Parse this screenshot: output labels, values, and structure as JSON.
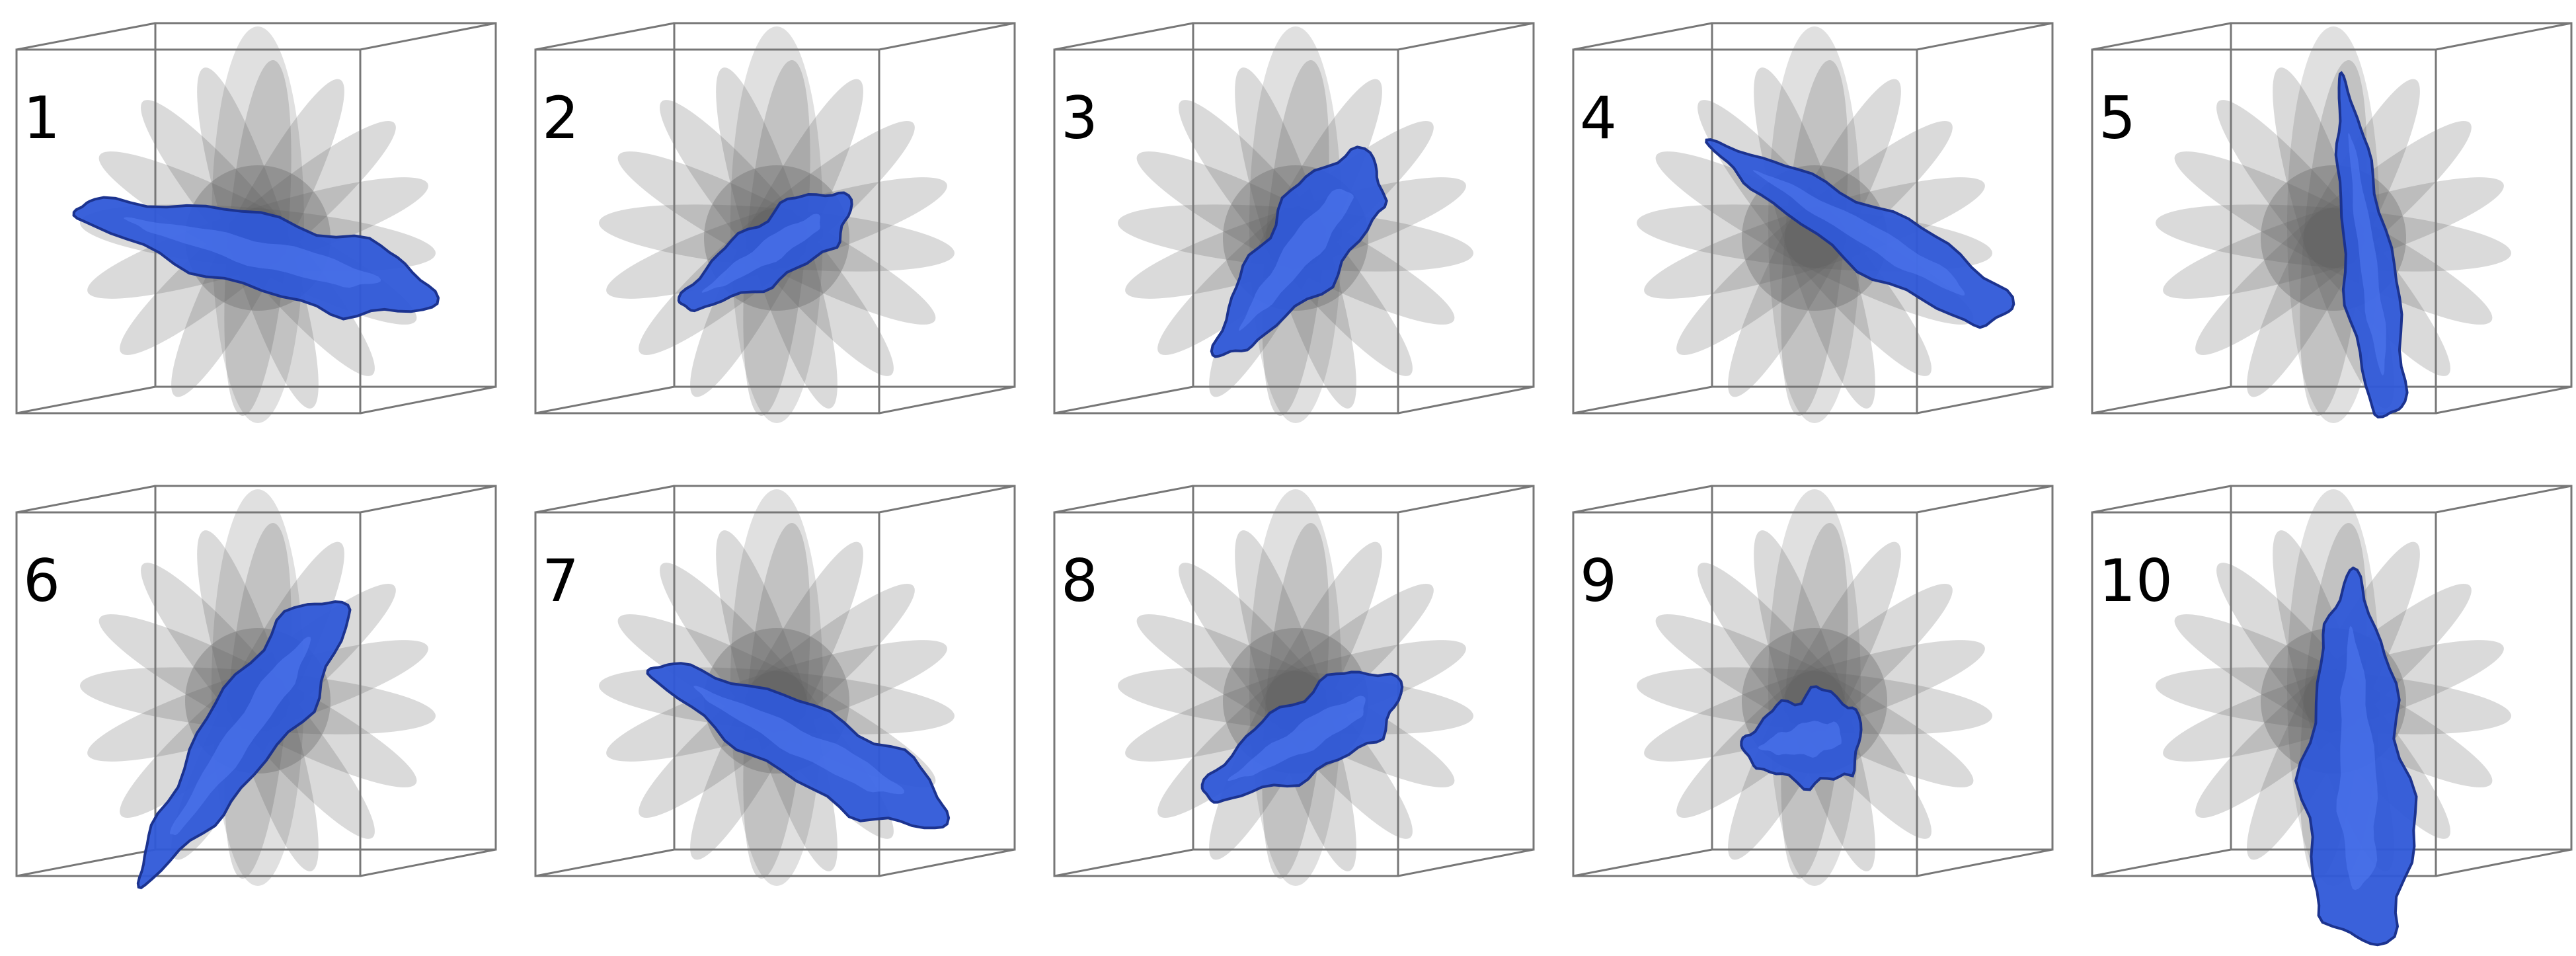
{
  "panels": [
    {
      "label": "1"
    },
    {
      "label": "2"
    },
    {
      "label": "3"
    },
    {
      "label": "4"
    },
    {
      "label": "5"
    },
    {
      "label": "6"
    },
    {
      "label": "7"
    },
    {
      "label": "8"
    },
    {
      "label": "9"
    },
    {
      "label": "10"
    }
  ]
}
